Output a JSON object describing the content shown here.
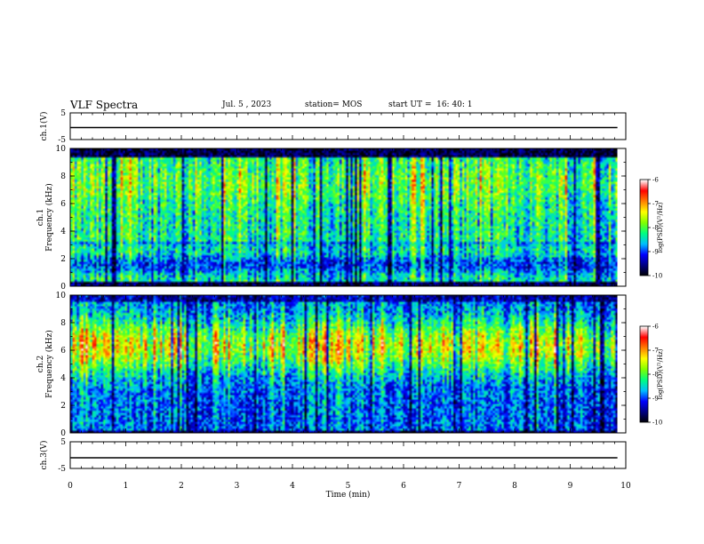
{
  "header": {
    "title": "VLF Spectra",
    "date": "Jul. 5 , 2023",
    "station": "station= MOS",
    "start": "start UT =  16: 40: 1"
  },
  "colors": {
    "background": "#ffffff",
    "axis": "#000000",
    "colormap": [
      "#000000",
      "#00007f",
      "#0000ff",
      "#00bfff",
      "#00ff80",
      "#80ff00",
      "#ffff00",
      "#ff8000",
      "#ff0000",
      "#ffffff"
    ]
  },
  "chart_data": [
    {
      "type": "line",
      "name": "ch1-waveform",
      "ylabel": "ch.1(V)",
      "ylim": [
        -5,
        5
      ],
      "yticks": [
        "5",
        "-5"
      ],
      "xlim": [
        0,
        10
      ],
      "x": [
        0,
        9.85
      ],
      "y": [
        -0.5,
        -0.5
      ]
    },
    {
      "type": "heatmap",
      "name": "ch1-spectrogram",
      "ylabel": "ch.1\nFrequency (kHz)",
      "ylabel_line1": "ch.1",
      "ylabel_line2": "Frequency (kHz)",
      "xlim": [
        0,
        10
      ],
      "ylim": [
        0,
        10
      ],
      "yticks": [
        "0",
        "2",
        "4",
        "6",
        "8",
        "10"
      ],
      "data_end_min": 9.85,
      "profile_note": "broadband, strongest 3-9 kHz",
      "colorbar": {
        "label": "log(PSD)(V²/Hz)",
        "range": [
          -10,
          -6
        ],
        "ticks": [
          "-10",
          "-9",
          "-8",
          "-7",
          "-6"
        ]
      }
    },
    {
      "type": "heatmap",
      "name": "ch2-spectrogram",
      "ylabel": "ch.2\nFrequency (kHz)",
      "ylabel_line1": "ch.2",
      "ylabel_line2": "Frequency (kHz)",
      "xlim": [
        0,
        10
      ],
      "ylim": [
        0,
        10
      ],
      "yticks": [
        "0",
        "2",
        "4",
        "6",
        "8",
        "10"
      ],
      "data_end_min": 9.85,
      "profile_note": "peak 5-8 kHz",
      "colorbar": {
        "label": "log(PSD)(V²/Hz)",
        "range": [
          -10,
          -6
        ],
        "ticks": [
          "-10",
          "-9",
          "-8",
          "-7",
          "-6"
        ]
      }
    },
    {
      "type": "line",
      "name": "ch3-waveform",
      "ylabel": "ch.3(V)",
      "ylim": [
        -5,
        5
      ],
      "yticks": [
        "5",
        "-5"
      ],
      "xlim": [
        0,
        10
      ],
      "x": [
        0,
        9.85
      ],
      "y": [
        -1.0,
        -1.0
      ]
    }
  ],
  "xaxis": {
    "label": "Time (min)",
    "ticks": [
      "0",
      "1",
      "2",
      "3",
      "4",
      "5",
      "6",
      "7",
      "8",
      "9",
      "10"
    ]
  }
}
